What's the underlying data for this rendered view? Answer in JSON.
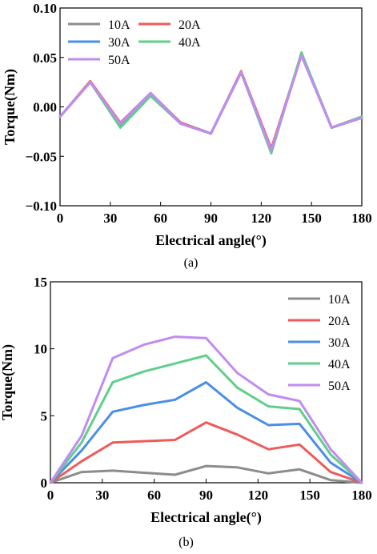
{
  "chart_data": [
    {
      "type": "line",
      "caption": "(a)",
      "xlabel": "Electrical angle(°)",
      "ylabel": "Torque(Nm)",
      "xlim": [
        0,
        180
      ],
      "ylim": [
        -0.1,
        0.1
      ],
      "xticks": [
        0,
        30,
        60,
        90,
        120,
        150,
        180
      ],
      "yticks": [
        -0.1,
        -0.05,
        0.0,
        0.05,
        0.1
      ],
      "ytick_labels": [
        "−0.10",
        "−0.05",
        "0.00",
        "0.05",
        "0.10"
      ],
      "xtick_labels": [
        "0",
        "30",
        "60",
        "90",
        "120",
        "150",
        "180"
      ],
      "legend_position": "top-left",
      "legend_columns": 2,
      "x": [
        0,
        18,
        36,
        54,
        72,
        90,
        108,
        126,
        144,
        162,
        180
      ],
      "series": [
        {
          "name": "10A",
          "color": "#8c8c8c",
          "values": [
            -0.01,
            0.025,
            -0.017,
            0.013,
            -0.016,
            -0.027,
            0.035,
            -0.043,
            0.052,
            -0.021,
            -0.011
          ]
        },
        {
          "name": "20A",
          "color": "#f05a5a",
          "values": [
            -0.01,
            0.026,
            -0.016,
            0.014,
            -0.016,
            -0.027,
            0.036,
            -0.042,
            0.053,
            -0.021,
            -0.011
          ]
        },
        {
          "name": "30A",
          "color": "#4a8ee8",
          "values": [
            -0.01,
            0.025,
            -0.019,
            0.012,
            -0.017,
            -0.027,
            0.035,
            -0.045,
            0.054,
            -0.021,
            -0.01
          ]
        },
        {
          "name": "40A",
          "color": "#5fcf8a",
          "values": [
            -0.01,
            0.025,
            -0.021,
            0.011,
            -0.017,
            -0.027,
            0.035,
            -0.047,
            0.055,
            -0.021,
            -0.01
          ]
        },
        {
          "name": "50A",
          "color": "#c18cf0",
          "values": [
            -0.01,
            0.025,
            -0.017,
            0.014,
            -0.017,
            -0.027,
            0.035,
            -0.044,
            0.052,
            -0.021,
            -0.011
          ]
        }
      ]
    },
    {
      "type": "line",
      "caption": "(b)",
      "xlabel": "Electrical angle(°)",
      "ylabel": "Torque(Nm)",
      "xlim": [
        0,
        180
      ],
      "ylim": [
        0,
        15
      ],
      "xticks": [
        0,
        30,
        60,
        90,
        120,
        150,
        180
      ],
      "yticks": [
        0,
        5,
        10,
        15
      ],
      "ytick_labels": [
        "0",
        "5",
        "10",
        "15"
      ],
      "xtick_labels": [
        "0",
        "30",
        "60",
        "90",
        "120",
        "150",
        "180"
      ],
      "legend_position": "top-right",
      "legend_columns": 1,
      "x": [
        0,
        18,
        36,
        54,
        72,
        90,
        108,
        126,
        144,
        162,
        180
      ],
      "series": [
        {
          "name": "10A",
          "color": "#8c8c8c",
          "values": [
            0,
            0.8,
            0.9,
            0.75,
            0.6,
            1.25,
            1.15,
            0.7,
            1.0,
            0.2,
            0
          ]
        },
        {
          "name": "20A",
          "color": "#f05a5a",
          "values": [
            0,
            1.6,
            3.0,
            3.1,
            3.2,
            4.5,
            3.6,
            2.5,
            2.85,
            0.8,
            0
          ]
        },
        {
          "name": "30A",
          "color": "#4a8ee8",
          "values": [
            0,
            2.4,
            5.3,
            5.8,
            6.2,
            7.5,
            5.6,
            4.3,
            4.4,
            1.5,
            0
          ]
        },
        {
          "name": "40A",
          "color": "#5fcf8a",
          "values": [
            0,
            3.0,
            7.5,
            8.3,
            8.9,
            9.5,
            7.1,
            5.7,
            5.5,
            2.1,
            0
          ]
        },
        {
          "name": "50A",
          "color": "#c18cf0",
          "values": [
            0,
            3.5,
            9.3,
            10.3,
            10.9,
            10.8,
            8.2,
            6.6,
            6.1,
            2.5,
            0
          ]
        }
      ]
    }
  ]
}
